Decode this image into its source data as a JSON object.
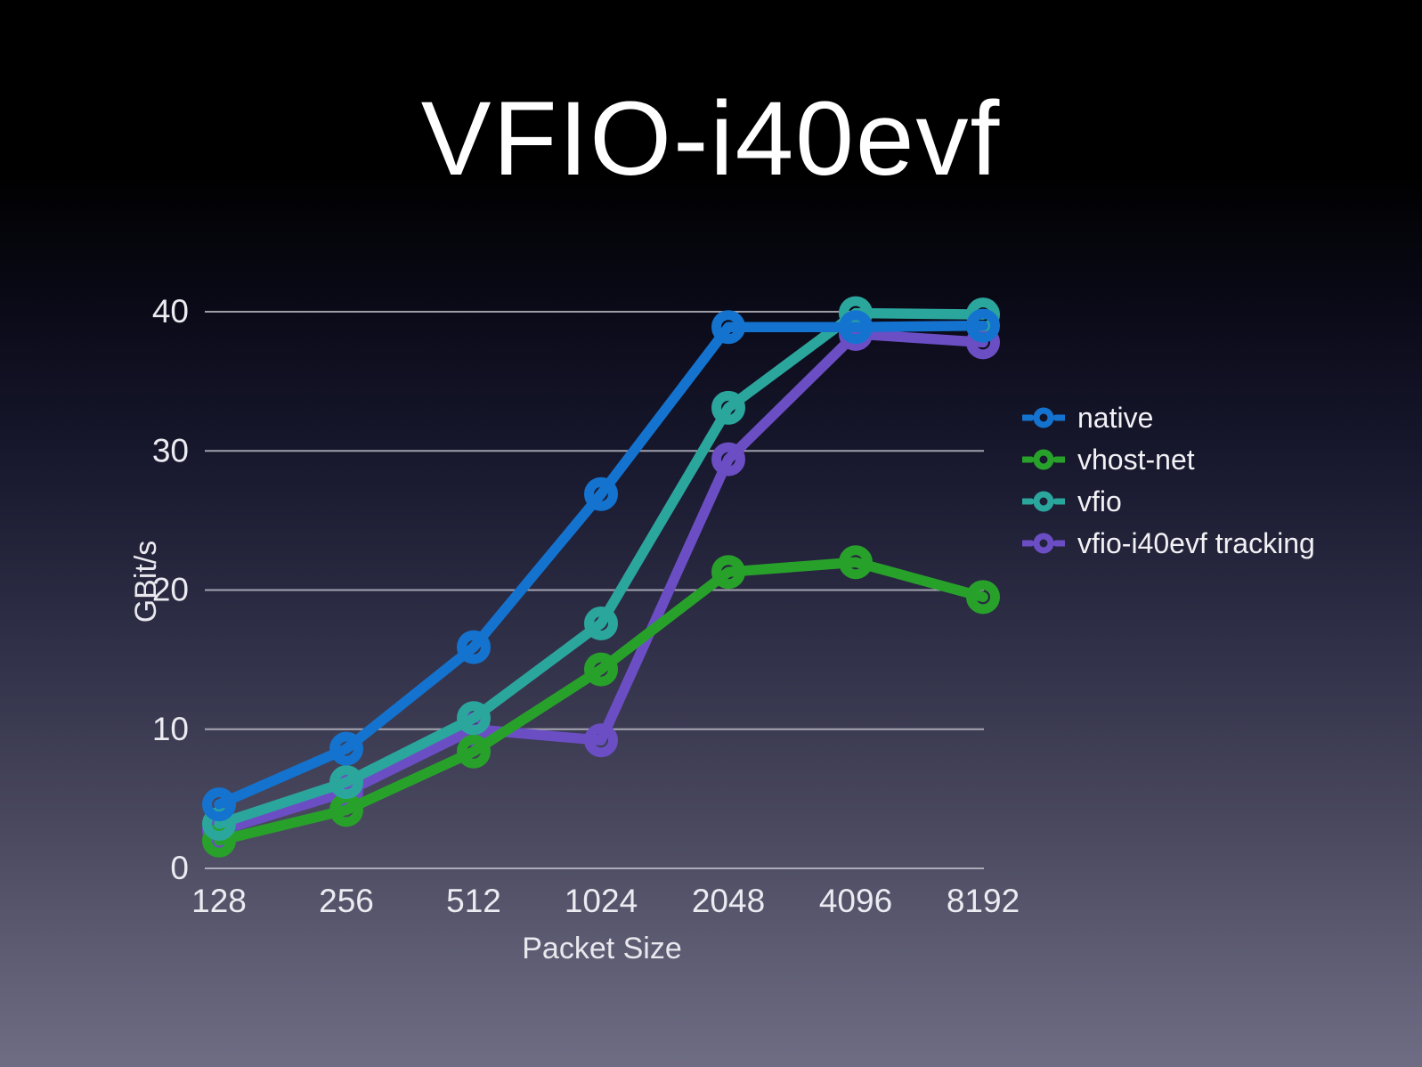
{
  "slide": {
    "title": "VFIO-i40evf"
  },
  "chart_data": {
    "type": "line",
    "title": "VFIO-i40evf",
    "xlabel": "Packet Size",
    "ylabel": "GBit/s",
    "categories": [
      "128",
      "256",
      "512",
      "1024",
      "2048",
      "4096",
      "8192"
    ],
    "y_ticks": [
      0,
      10,
      20,
      30,
      40
    ],
    "ylim": [
      0,
      42
    ],
    "grid": true,
    "legend_position": "right",
    "series": [
      {
        "name": "native",
        "color": "#1473cf",
        "values": [
          4.6,
          8.6,
          15.9,
          26.9,
          38.9,
          38.9,
          39.0
        ]
      },
      {
        "name": "vhost-net",
        "color": "#28a12b",
        "values": [
          2.0,
          4.2,
          8.4,
          14.3,
          21.3,
          22.0,
          19.5
        ]
      },
      {
        "name": "vfio",
        "color": "#2ba69d",
        "values": [
          3.2,
          6.2,
          10.8,
          17.6,
          33.1,
          39.9,
          39.8
        ]
      },
      {
        "name": "vfio-i40evf tracking",
        "color": "#6b4ec4",
        "values": [
          2.7,
          5.5,
          10.0,
          9.2,
          29.4,
          38.4,
          37.8
        ]
      }
    ],
    "draw_order_indices": [
      3,
      1,
      2,
      0
    ],
    "grid_color": "#c3c2cc",
    "tick_text_color": "#ecebf1"
  }
}
